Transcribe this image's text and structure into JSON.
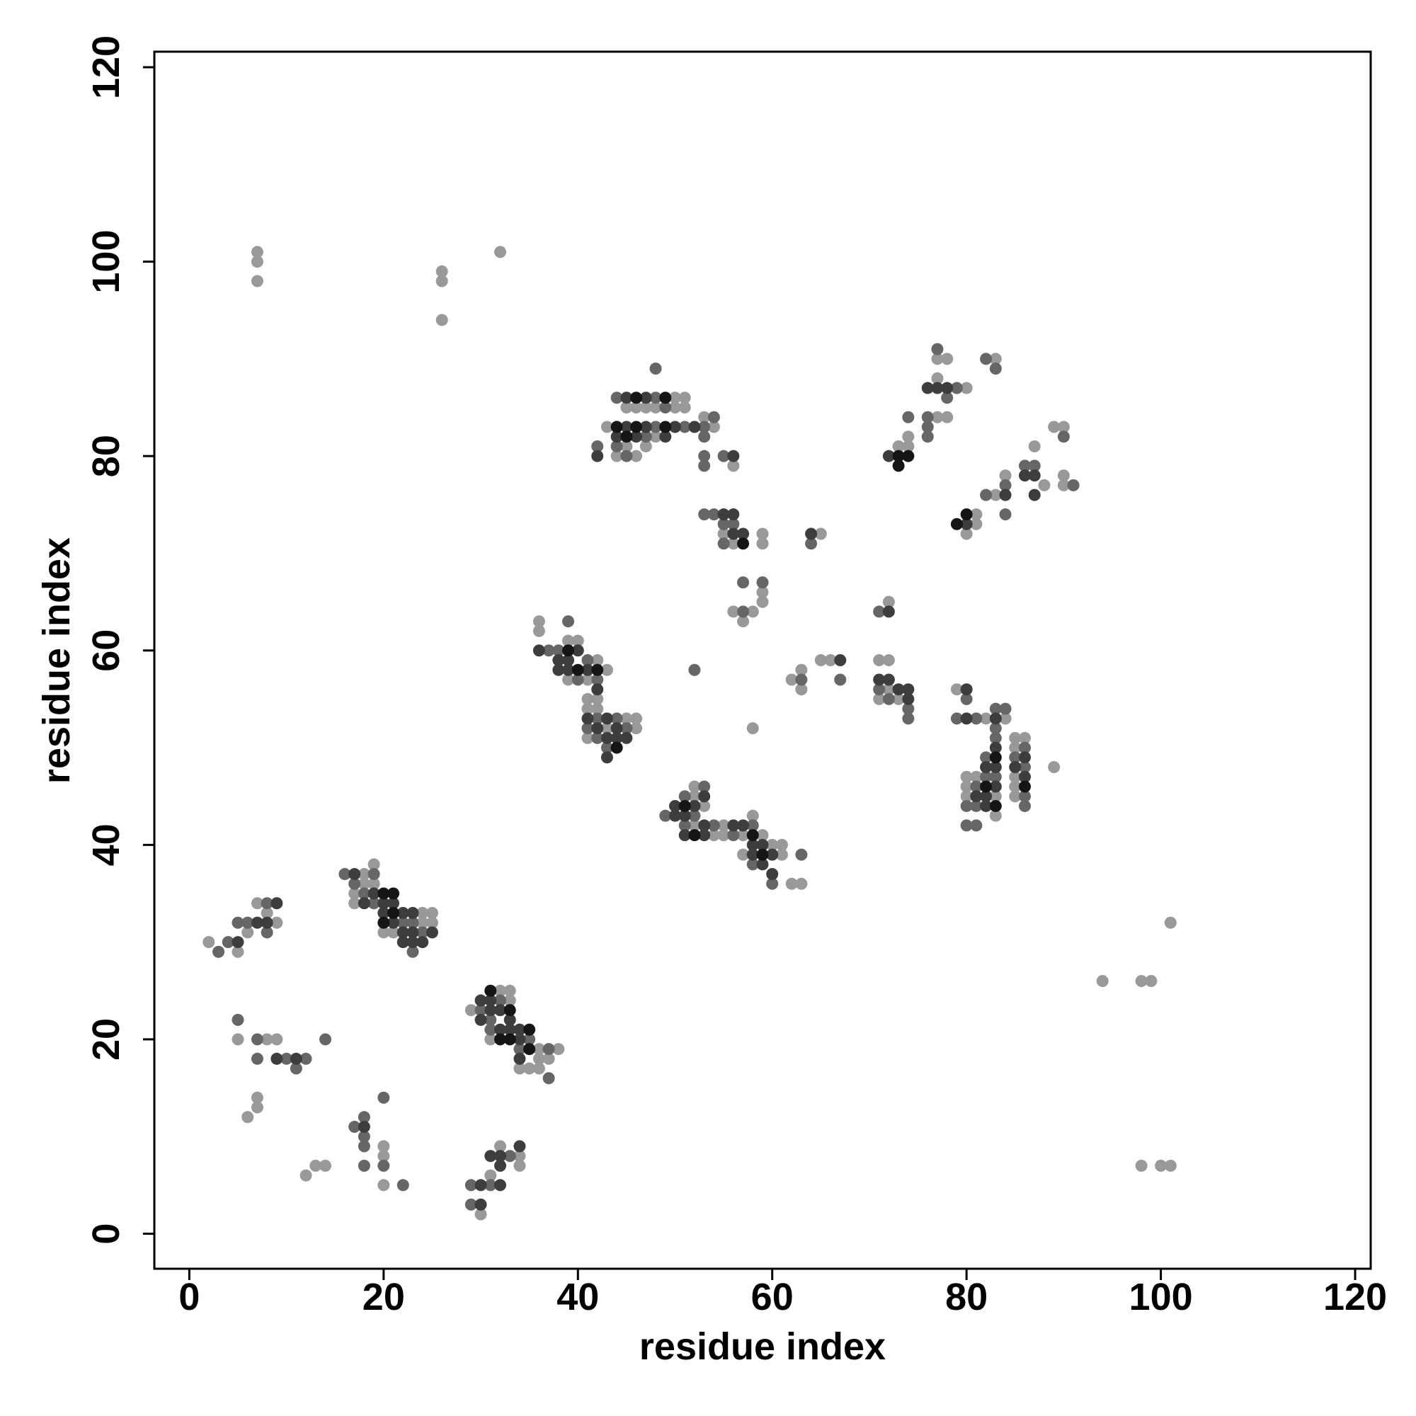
{
  "chart_data": {
    "type": "scatter",
    "xlabel": "residue index",
    "ylabel": "residue index",
    "xlim": [
      -3.6,
      121.6
    ],
    "ylim": [
      -3.6,
      121.6
    ],
    "xticks": [
      0,
      20,
      40,
      60,
      80,
      100,
      120
    ],
    "yticks": [
      0,
      20,
      40,
      60,
      80,
      100,
      120
    ],
    "series": [
      {
        "color": "#999999",
        "x": [
          7,
          7,
          7,
          26,
          26,
          26,
          32,
          2,
          5,
          6,
          7,
          9,
          8,
          5,
          8,
          9,
          7,
          7,
          6,
          12,
          13,
          14,
          20,
          20,
          20,
          17,
          17,
          18,
          18,
          19,
          19,
          20,
          21,
          24,
          24,
          25,
          25,
          29,
          31,
          32,
          33,
          33,
          34,
          35,
          36,
          36,
          36,
          37,
          38,
          30,
          31,
          32,
          34,
          34,
          36,
          36,
          39,
          39,
          40,
          41,
          41,
          41,
          41,
          42,
          42,
          42,
          43,
          43,
          45,
          46,
          46,
          43,
          44,
          45,
          45,
          46,
          46,
          47,
          47,
          48,
          48,
          50,
          50,
          51,
          51,
          53,
          54,
          56,
          55,
          56,
          59,
          59,
          59,
          59,
          56,
          57,
          58,
          58,
          52,
          52,
          52,
          53,
          54,
          55,
          55,
          57,
          57,
          58,
          59,
          60,
          61,
          61,
          62,
          63,
          62,
          63,
          63,
          65,
          65,
          66,
          72,
          71,
          72,
          71,
          72,
          73,
          73,
          74,
          74,
          77,
          77,
          77,
          78,
          78,
          80,
          83,
          80,
          81,
          81,
          83,
          84,
          87,
          88,
          89,
          90,
          90,
          90,
          79,
          82,
          84,
          80,
          80,
          80,
          81,
          83,
          83,
          85,
          85,
          85,
          85,
          85,
          86,
          89,
          94,
          98,
          99,
          101,
          98,
          100,
          101
        ],
        "values": [
          101,
          100,
          98,
          99,
          98,
          94,
          101,
          30,
          29,
          31,
          34,
          32,
          33,
          20,
          20,
          20,
          14,
          13,
          12,
          6,
          7,
          7,
          9,
          8,
          5,
          35,
          34,
          37,
          36,
          38,
          36,
          31,
          31,
          33,
          32,
          33,
          32,
          23,
          20,
          25,
          25,
          24,
          17,
          17,
          19,
          18,
          17,
          18,
          19,
          2,
          6,
          9,
          8,
          7,
          63,
          62,
          61,
          57,
          61,
          57,
          55,
          54,
          51,
          59,
          55,
          54,
          58,
          52,
          53,
          53,
          52,
          83,
          80,
          85,
          81,
          85,
          80,
          85,
          81,
          85,
          82,
          86,
          85,
          86,
          85,
          84,
          83,
          79,
          72,
          71,
          72,
          71,
          66,
          65,
          64,
          63,
          64,
          52,
          46,
          45,
          42,
          44,
          41,
          42,
          41,
          41,
          39,
          43,
          41,
          40,
          40,
          39,
          36,
          36,
          57,
          56,
          58,
          72,
          59,
          59,
          65,
          59,
          59,
          55,
          56,
          55,
          81,
          82,
          81,
          90,
          88,
          84,
          90,
          84,
          87,
          90,
          72,
          73,
          74,
          76,
          78,
          81,
          77,
          83,
          83,
          78,
          77,
          56,
          53,
          53,
          47,
          46,
          45,
          47,
          45,
          43,
          51,
          50,
          47,
          46,
          45,
          51,
          48,
          26,
          26,
          26,
          32,
          7,
          7,
          7
        ]
      },
      {
        "color": "#666666",
        "x": [
          3,
          4,
          5,
          6,
          8,
          8,
          5,
          7,
          7,
          10,
          11,
          12,
          14,
          17,
          18,
          18,
          18,
          18,
          20,
          20,
          22,
          16,
          17,
          18,
          19,
          19,
          22,
          23,
          23,
          24,
          30,
          31,
          31,
          32,
          34,
          35,
          37,
          37,
          29,
          29,
          31,
          33,
          37,
          38,
          39,
          40,
          41,
          41,
          42,
          42,
          42,
          43,
          44,
          45,
          42,
          44,
          44,
          45,
          47,
          48,
          48,
          48,
          49,
          51,
          53,
          53,
          53,
          53,
          54,
          55,
          53,
          54,
          55,
          55,
          56,
          57,
          59,
          57,
          52,
          49,
          51,
          51,
          52,
          53,
          54,
          56,
          58,
          58,
          60,
          63,
          63,
          64,
          67,
          71,
          71,
          72,
          74,
          74,
          74,
          76,
          76,
          76,
          77,
          78,
          79,
          82,
          83,
          82,
          84,
          84,
          86,
          87,
          90,
          91,
          80,
          79,
          81,
          83,
          84,
          83,
          83,
          80,
          80,
          81,
          81,
          81,
          82,
          82,
          83,
          85,
          86,
          86,
          86,
          86
        ],
        "values": [
          29,
          30,
          32,
          32,
          31,
          34,
          22,
          20,
          18,
          18,
          17,
          18,
          20,
          11,
          12,
          10,
          9,
          7,
          14,
          7,
          5,
          37,
          36,
          35,
          37,
          34,
          32,
          32,
          29,
          31,
          23,
          22,
          21,
          24,
          19,
          20,
          19,
          16,
          5,
          3,
          5,
          8,
          60,
          60,
          63,
          57,
          59,
          52,
          57,
          53,
          51,
          50,
          53,
          52,
          81,
          86,
          81,
          80,
          82,
          89,
          86,
          83,
          85,
          83,
          83,
          82,
          80,
          79,
          84,
          80,
          74,
          74,
          73,
          71,
          73,
          67,
          67,
          64,
          58,
          43,
          45,
          42,
          43,
          46,
          42,
          41,
          42,
          38,
          36,
          39,
          57,
          71,
          57,
          64,
          56,
          55,
          54,
          53,
          84,
          84,
          83,
          82,
          91,
          86,
          87,
          90,
          89,
          76,
          77,
          74,
          79,
          79,
          82,
          77,
          55,
          53,
          53,
          54,
          54,
          52,
          51,
          44,
          42,
          46,
          44,
          42,
          49,
          47,
          47,
          49,
          50,
          48,
          45,
          44
        ]
      },
      {
        "color": "#3d3d3d",
        "x": [
          5,
          7,
          8,
          9,
          9,
          11,
          18,
          17,
          18,
          19,
          20,
          20,
          21,
          21,
          22,
          22,
          22,
          23,
          23,
          23,
          24,
          25,
          30,
          30,
          31,
          31,
          32,
          32,
          33,
          33,
          34,
          34,
          34,
          30,
          30,
          31,
          32,
          32,
          32,
          34,
          36,
          38,
          38,
          39,
          39,
          40,
          41,
          41,
          42,
          42,
          43,
          43,
          43,
          44,
          44,
          45,
          42,
          44,
          45,
          45,
          46,
          47,
          47,
          49,
          50,
          52,
          56,
          55,
          56,
          56,
          57,
          64,
          67,
          50,
          50,
          51,
          51,
          52,
          53,
          53,
          53,
          56,
          57,
          58,
          58,
          59,
          59,
          60,
          60,
          72,
          71,
          72,
          73,
          74,
          74,
          72,
          76,
          77,
          78,
          80,
          84,
          86,
          87,
          87,
          80,
          80,
          83,
          83,
          81,
          82,
          82,
          82,
          83,
          83,
          85,
          86,
          86
        ],
        "values": [
          30,
          32,
          32,
          34,
          18,
          18,
          11,
          37,
          34,
          35,
          34,
          33,
          34,
          32,
          33,
          31,
          30,
          33,
          31,
          30,
          30,
          31,
          24,
          22,
          24,
          23,
          23,
          21,
          22,
          21,
          21,
          20,
          18,
          5,
          3,
          8,
          8,
          7,
          5,
          9,
          60,
          59,
          58,
          59,
          58,
          60,
          58,
          53,
          56,
          52,
          53,
          51,
          49,
          52,
          51,
          51,
          80,
          82,
          86,
          83,
          82,
          86,
          83,
          82,
          83,
          83,
          80,
          74,
          74,
          72,
          72,
          72,
          59,
          44,
          43,
          43,
          41,
          44,
          45,
          42,
          41,
          42,
          42,
          40,
          39,
          40,
          38,
          39,
          37,
          64,
          57,
          57,
          56,
          56,
          55,
          80,
          87,
          87,
          87,
          73,
          76,
          78,
          78,
          76,
          56,
          53,
          53,
          50,
          45,
          48,
          45,
          44,
          48,
          46,
          48,
          49,
          47
        ]
      },
      {
        "color": "#151515",
        "x": [
          20,
          20,
          21,
          21,
          31,
          32,
          33,
          33,
          35,
          35,
          39,
          40,
          42,
          44,
          44,
          45,
          46,
          46,
          49,
          49,
          57,
          51,
          52,
          58,
          59,
          73,
          73,
          74,
          79,
          80,
          82,
          83,
          83,
          86
        ],
        "values": [
          35,
          32,
          35,
          33,
          25,
          20,
          23,
          20,
          21,
          19,
          60,
          58,
          58,
          50,
          83,
          82,
          86,
          83,
          86,
          83,
          71,
          44,
          41,
          41,
          39,
          80,
          79,
          80,
          73,
          74,
          46,
          49,
          44,
          46
        ]
      }
    ]
  }
}
